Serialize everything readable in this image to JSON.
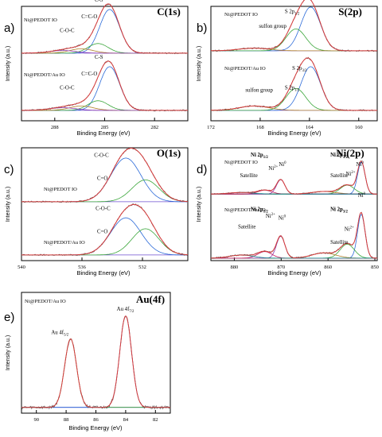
{
  "chart_data": [
    {
      "type": "line",
      "panel_label": "a)",
      "element_title": "C(1s)",
      "xlabel": "Binding Energy (eV)",
      "ylabel": "Intensity (a.u.)",
      "xlim": [
        290,
        280
      ],
      "xticks": [
        288,
        285,
        282
      ],
      "subplots": [
        {
          "sample_label": "Ni@PEDOT IO",
          "annotations": [
            {
              "text": "C-O-C",
              "x": 287.7,
              "y": 0.5
            },
            {
              "text": "C=C-O",
              "x": 286.4,
              "y": 0.82
            },
            {
              "text": "C-S",
              "x": 285.6,
              "y": 1.2
            }
          ],
          "peaks": [
            {
              "name": "C-C/C=C",
              "center": 284.7,
              "height": 1.0,
              "width": 0.6
            },
            {
              "name": "C-S",
              "center": 285.4,
              "height": 0.22,
              "width": 0.6
            },
            {
              "name": "C=C-O",
              "center": 286.4,
              "height": 0.1,
              "width": 0.7
            },
            {
              "name": "C-O-C",
              "center": 287.5,
              "height": 0.06,
              "width": 0.8
            }
          ]
        },
        {
          "sample_label": "Ni@PEDOT/Au IO",
          "annotations": [
            {
              "text": "C-O-C",
              "x": 287.7,
              "y": 0.5
            },
            {
              "text": "C=C-O",
              "x": 286.4,
              "y": 0.82
            },
            {
              "text": "C-S",
              "x": 285.6,
              "y": 1.2
            }
          ],
          "peaks": [
            {
              "name": "C-C/C=C",
              "center": 284.7,
              "height": 1.0,
              "width": 0.6
            },
            {
              "name": "C-S",
              "center": 285.4,
              "height": 0.22,
              "width": 0.6
            },
            {
              "name": "C=C-O",
              "center": 286.4,
              "height": 0.1,
              "width": 0.7
            },
            {
              "name": "C-O-C",
              "center": 287.5,
              "height": 0.06,
              "width": 0.8
            }
          ]
        }
      ]
    },
    {
      "type": "line",
      "panel_label": "b)",
      "element_title": "S(2p)",
      "xlabel": "Binding Energy (eV)",
      "ylabel": "Intensity (a.u.)",
      "xlim": [
        172,
        158.5
      ],
      "xticks": [
        172,
        168,
        164,
        160
      ],
      "subplots": [
        {
          "sample_label": "Ni@PEDOT IO",
          "annotations": [
            {
              "text": "sulfon group",
              "x": 168.1,
              "y": 0.55
            },
            {
              "text": "S 2p1/2",
              "x": 166.0,
              "y": 0.88
            },
            {
              "text": "S 2p3/2",
              "x": 165.4,
              "y": 1.35
            }
          ],
          "peaks": [
            {
              "name": "S 2p3/2",
              "center": 163.9,
              "height": 1.0,
              "width": 0.8
            },
            {
              "name": "S 2p1/2",
              "center": 165.1,
              "height": 0.5,
              "width": 0.8
            },
            {
              "name": "sulfon group",
              "center": 168.5,
              "height": 0.06,
              "width": 1.2
            }
          ]
        },
        {
          "sample_label": "Ni@PEDOT/Au IO",
          "annotations": [
            {
              "text": "sulfon group",
              "x": 169.2,
              "y": 0.45
            },
            {
              "text": "S 2p1/2",
              "x": 166.0,
              "y": 0.5
            },
            {
              "text": "S 2p3/2",
              "x": 165.4,
              "y": 0.95
            }
          ],
          "peaks": [
            {
              "name": "S 2p3/2",
              "center": 163.9,
              "height": 1.0,
              "width": 0.8
            },
            {
              "name": "S 2p1/2",
              "center": 165.1,
              "height": 0.5,
              "width": 0.8
            },
            {
              "name": "sulfon group",
              "center": 168.5,
              "height": 0.1,
              "width": 1.2
            }
          ]
        }
      ]
    },
    {
      "type": "line",
      "panel_label": "c)",
      "element_title": "O(1s)",
      "xlabel": "Binding Energy (eV)",
      "ylabel": "Intensity (a.u.)",
      "xlim": [
        540,
        529
      ],
      "xticks": [
        540,
        536,
        532
      ],
      "subplots": [
        {
          "sample_label": "Ni@PEDOT IO",
          "annotations": [
            {
              "text": "C-O-C",
              "x": 535.2,
              "y": 1.05
            },
            {
              "text": "C=O",
              "x": 535.0,
              "y": 0.52
            }
          ],
          "peaks": [
            {
              "name": "C-O-C",
              "center": 533.1,
              "height": 1.0,
              "width": 1.0
            },
            {
              "name": "C=O",
              "center": 531.8,
              "height": 0.5,
              "width": 0.9
            }
          ]
        },
        {
          "sample_label": "Ni@PEDOT/Au IO",
          "annotations": [
            {
              "text": "C-O-C",
              "x": 535.1,
              "y": 1.05
            },
            {
              "text": "C=O",
              "x": 535.0,
              "y": 0.52
            }
          ],
          "peaks": [
            {
              "name": "C-O-C",
              "center": 533.1,
              "height": 0.85,
              "width": 1.0
            },
            {
              "name": "C=O",
              "center": 531.8,
              "height": 0.6,
              "width": 0.9
            }
          ]
        }
      ]
    },
    {
      "type": "line",
      "panel_label": "d)",
      "element_title": "Ni(2p)",
      "xlabel": "Binding Energy (eV)",
      "ylabel": "Intensity (a.u.)",
      "xlim": [
        885,
        849.5
      ],
      "xticks": [
        880,
        870,
        860,
        850
      ],
      "subplots": [
        {
          "sample_label": "Ni@PEDOT IO",
          "annotations": [
            {
              "text": "Ni 2p1/2",
              "x": 876.5,
              "y": 1.2
            },
            {
              "text": "Satellite",
              "x": 878.8,
              "y": 0.55
            },
            {
              "text": "Ni2+",
              "x": 872.7,
              "y": 0.78
            },
            {
              "text": "Ni0",
              "x": 870.5,
              "y": 0.9
            },
            {
              "text": "Ni 2p3/2",
              "x": 859.5,
              "y": 1.2
            },
            {
              "text": "Satellite",
              "x": 859.5,
              "y": 0.55
            },
            {
              "text": "Ni2+",
              "x": 856.2,
              "y": 0.6
            },
            {
              "text": "Ni0",
              "x": 854.0,
              "y": 0.9
            }
          ],
          "peaks": [
            {
              "name": "Ni0 2p3/2",
              "center": 852.9,
              "height": 1.0,
              "width": 0.8
            },
            {
              "name": "Ni2+ 2p3/2",
              "center": 855.9,
              "height": 0.28,
              "width": 1.5
            },
            {
              "name": "Satellite 2p3/2",
              "center": 860.9,
              "height": 0.08,
              "width": 2.5
            },
            {
              "name": "Ni0 2p1/2",
              "center": 870.1,
              "height": 0.45,
              "width": 0.9
            },
            {
              "name": "Ni2+ 2p1/2",
              "center": 873.5,
              "height": 0.12,
              "width": 1.5
            },
            {
              "name": "Satellite 2p1/2",
              "center": 878.5,
              "height": 0.05,
              "width": 2.5
            }
          ]
        },
        {
          "sample_label": "Ni@PEDOT/Au IO",
          "annotations": [
            {
              "text": "Ni 2p1/2",
              "x": 876.5,
              "y": 1.1
            },
            {
              "text": "Satellite",
              "x": 879.2,
              "y": 0.7
            },
            {
              "text": "Ni2+",
              "x": 873.3,
              "y": 0.95
            },
            {
              "text": "Ni0",
              "x": 870.6,
              "y": 0.9
            },
            {
              "text": "Ni 2p3/2",
              "x": 859.5,
              "y": 1.1
            },
            {
              "text": "Satellite",
              "x": 859.5,
              "y": 0.35
            },
            {
              "text": "Ni2+",
              "x": 856.5,
              "y": 0.65
            },
            {
              "text": "Ni0",
              "x": 853.6,
              "y": 1.42
            }
          ],
          "peaks": [
            {
              "name": "Ni0 2p3/2",
              "center": 852.9,
              "height": 1.0,
              "width": 0.8
            },
            {
              "name": "Ni2+ 2p3/2",
              "center": 855.9,
              "height": 0.32,
              "width": 1.5
            },
            {
              "name": "Satellite 2p3/2",
              "center": 860.9,
              "height": 0.12,
              "width": 2.5
            },
            {
              "name": "Ni0 2p1/2",
              "center": 870.1,
              "height": 0.5,
              "width": 0.9
            },
            {
              "name": "Ni2+ 2p1/2",
              "center": 873.5,
              "height": 0.15,
              "width": 1.5
            },
            {
              "name": "Satellite 2p1/2",
              "center": 878.5,
              "height": 0.07,
              "width": 2.5
            }
          ]
        }
      ]
    },
    {
      "type": "line",
      "panel_label": "e)",
      "element_title": "Au(4f)",
      "xlabel": "Binding Energy (eV)",
      "ylabel": "Intensity (a.u.)",
      "xlim": [
        91,
        81
      ],
      "xticks": [
        90,
        88,
        86,
        84,
        82
      ],
      "subplots": [
        {
          "sample_label": "Ni@PEDOT/Au IO",
          "annotations": [
            {
              "text": "Au 4f5/2",
              "x": 89.0,
              "y": 0.82
            },
            {
              "text": "Au 4f7/2",
              "x": 84.6,
              "y": 1.08
            }
          ],
          "peaks": [
            {
              "name": "Au 4f7/2",
              "center": 84.0,
              "height": 1.0,
              "width": 0.4
            },
            {
              "name": "Au 4f5/2",
              "center": 87.7,
              "height": 0.75,
              "width": 0.4
            }
          ]
        }
      ]
    }
  ]
}
